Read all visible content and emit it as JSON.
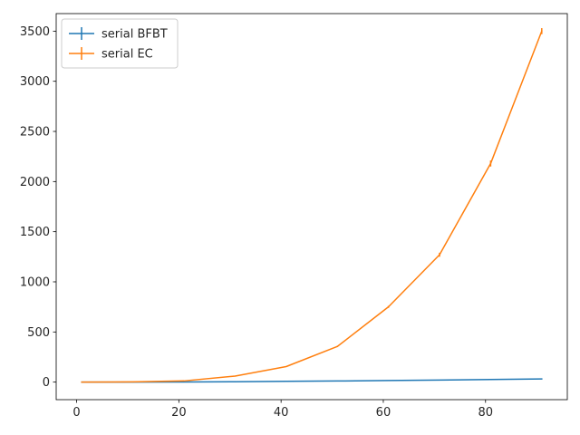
{
  "chart_data": {
    "type": "line",
    "title": "",
    "xlabel": "",
    "ylabel": "",
    "x": [
      1,
      11,
      21,
      31,
      41,
      51,
      61,
      71,
      81,
      91
    ],
    "series": [
      {
        "name": "serial BFBT",
        "color": "#1f77b4",
        "values": [
          0.1,
          0.5,
          1.5,
          4,
          7.5,
          11,
          15.5,
          20.5,
          25.5,
          31.5
        ],
        "errors": [
          0,
          0,
          0,
          0,
          0,
          0,
          0,
          0,
          0,
          1
        ]
      },
      {
        "name": "serial EC",
        "color": "#ff7f0e",
        "values": [
          0.2,
          2,
          12,
          60,
          155,
          355,
          750,
          1270,
          2180,
          3500
        ],
        "errors": [
          0,
          0,
          1,
          2,
          4,
          6,
          10,
          20,
          30,
          30
        ]
      }
    ],
    "xlim": [
      -4,
      96
    ],
    "ylim": [
      -175,
      3675
    ],
    "xticks": [
      0,
      20,
      40,
      60,
      80
    ],
    "yticks": [
      0,
      500,
      1000,
      1500,
      2000,
      2500,
      3000,
      3500
    ],
    "grid": false,
    "legend_position": "top-left"
  }
}
